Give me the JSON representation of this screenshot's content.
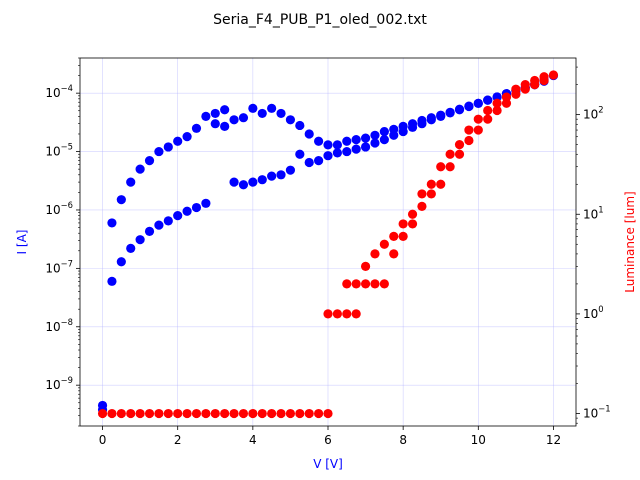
{
  "chart_data": {
    "type": "scatter",
    "title": "Seria_F4_PUB_P1_oled_002.txt",
    "xlabel": "V [V]",
    "ylabel_left": "I [A]",
    "ylabel_right": "Luminance [lum]",
    "x_ticks": [
      "0",
      "2",
      "4",
      "6",
      "8",
      "10",
      "12"
    ],
    "xlim": [
      -0.6,
      12.6
    ],
    "ylim_left": [
      2e-10,
      0.0004
    ],
    "ylim_right": [
      0.075,
      370
    ],
    "y_left_scale": "log",
    "y_right_scale": "log",
    "y_left_tick_labels": [
      {
        "base": "10",
        "exp": "−9"
      },
      {
        "base": "10",
        "exp": "−8"
      },
      {
        "base": "10",
        "exp": "−7"
      },
      {
        "base": "10",
        "exp": "−6"
      },
      {
        "base": "10",
        "exp": "−5"
      },
      {
        "base": "10",
        "exp": "−4"
      }
    ],
    "y_right_tick_labels": [
      {
        "base": "10",
        "exp": "−1"
      },
      {
        "base": "10",
        "exp": "0"
      },
      {
        "base": "10",
        "exp": "1"
      },
      {
        "base": "10",
        "exp": "2"
      }
    ],
    "grid": true,
    "colors": {
      "current": "#0000ff",
      "luminance": "#ff0000",
      "grid": "#b0b0ff"
    },
    "series": [
      {
        "axis": "left",
        "color": "#0000ff",
        "x": [
          0,
          0,
          0.25,
          0.5,
          0.75,
          1.0,
          1.25,
          1.5,
          1.75,
          2.0,
          2.25,
          2.5,
          2.75,
          3.0,
          3.25,
          3.5,
          3.75,
          4.0,
          4.25,
          4.5,
          4.75,
          5.0,
          5.25,
          5.5,
          5.75,
          6.0,
          6.25,
          6.5,
          6.75,
          7.0,
          7.25,
          7.5,
          7.75,
          8.0,
          8.25,
          8.5,
          8.75,
          9.0,
          9.25,
          9.5,
          9.75,
          10.0,
          10.25,
          10.5,
          10.75,
          11.0,
          11.25,
          11.5,
          11.75,
          12.0,
          0.25,
          0.5,
          0.75,
          1.0,
          1.25,
          1.5,
          1.75,
          2.0,
          2.25,
          2.5,
          2.75,
          3.0,
          3.25,
          3.5,
          3.75,
          4.0,
          4.25,
          4.5,
          4.75,
          5.0,
          5.25,
          5.5,
          5.75,
          6.0,
          6.25,
          6.5,
          6.75,
          7.0,
          7.25,
          7.5,
          7.75,
          8.0,
          8.25,
          8.5,
          8.75,
          9.0,
          9.25,
          9.5,
          9.75,
          10.0,
          10.25,
          10.5,
          10.75,
          11.0,
          11.25,
          11.5,
          11.75
        ],
        "y": [
          4.5e-10,
          3.8e-10,
          6e-08,
          1.3e-07,
          2.2e-07,
          3.1e-07,
          4.3e-07,
          5.5e-07,
          6.5e-07,
          8e-07,
          9.5e-07,
          1.1e-06,
          1.3e-06,
          3e-05,
          2.7e-05,
          3e-06,
          2.7e-06,
          3e-06,
          3.3e-06,
          3.8e-06,
          4e-06,
          4.8e-06,
          9e-06,
          6.5e-06,
          7e-06,
          8.5e-06,
          9.5e-06,
          1e-05,
          1.1e-05,
          1.2e-05,
          1.4e-05,
          1.6e-05,
          1.9e-05,
          2.2e-05,
          2.6e-05,
          3e-05,
          3.5e-05,
          4e-05,
          4.6e-05,
          5.2e-05,
          5.9e-05,
          6.7e-05,
          7.6e-05,
          8.6e-05,
          9.8e-05,
          0.00011,
          0.000125,
          0.00014,
          0.00016,
          0.0002,
          6e-07,
          1.5e-06,
          3e-06,
          5e-06,
          7e-06,
          1e-05,
          1.2e-05,
          1.5e-05,
          1.8e-05,
          2.5e-05,
          4e-05,
          4.5e-05,
          5.2e-05,
          3.5e-05,
          3.8e-05,
          5.5e-05,
          4.5e-05,
          5.5e-05,
          4.5e-05,
          3.5e-05,
          2.8e-05,
          2e-05,
          1.5e-05,
          1.3e-05,
          1.3e-05,
          1.5e-05,
          1.6e-05,
          1.7e-05,
          1.9e-05,
          2.2e-05,
          2.4e-05,
          2.7e-05,
          3e-05,
          3.4e-05,
          3.8e-05,
          4.2e-05,
          4.7e-05,
          5.3e-05,
          6e-05,
          6.7e-05,
          7.6e-05,
          8.6e-05,
          9.8e-05,
          0.00011,
          0.000125,
          0.00014,
          0.00017
        ]
      },
      {
        "axis": "right",
        "color": "#ff0000",
        "x": [
          0,
          0.25,
          0.5,
          0.75,
          1.0,
          1.25,
          1.5,
          1.75,
          2.0,
          2.25,
          2.5,
          2.75,
          3.0,
          3.25,
          3.5,
          3.75,
          4.0,
          4.25,
          4.5,
          4.75,
          5.0,
          5.25,
          5.5,
          5.75,
          6.0,
          6.0,
          6.25,
          6.5,
          6.75,
          6.5,
          6.75,
          7.0,
          7.0,
          7.25,
          7.5,
          7.25,
          7.5,
          7.75,
          7.75,
          8.0,
          8.0,
          8.25,
          8.25,
          8.5,
          8.5,
          8.75,
          8.75,
          9.0,
          9.0,
          9.25,
          9.25,
          9.5,
          9.5,
          9.75,
          9.75,
          10.0,
          10.0,
          10.25,
          10.25,
          10.5,
          10.5,
          10.75,
          10.75,
          11.0,
          11.0,
          11.25,
          11.25,
          11.5,
          11.5,
          11.75,
          11.75,
          12.0
        ],
        "y": [
          0.1,
          0.1,
          0.1,
          0.1,
          0.1,
          0.1,
          0.1,
          0.1,
          0.1,
          0.1,
          0.1,
          0.1,
          0.1,
          0.1,
          0.1,
          0.1,
          0.1,
          0.1,
          0.1,
          0.1,
          0.1,
          0.1,
          0.1,
          0.1,
          0.1,
          1,
          1,
          1,
          1,
          2,
          2,
          2,
          3,
          2,
          2,
          4,
          5,
          4,
          6,
          8,
          6,
          10,
          8,
          16,
          12,
          20,
          16,
          30,
          20,
          40,
          30,
          50,
          40,
          70,
          55,
          90,
          70,
          110,
          90,
          130,
          110,
          150,
          130,
          180,
          160,
          200,
          180,
          220,
          200,
          240,
          220,
          250
        ]
      }
    ]
  }
}
